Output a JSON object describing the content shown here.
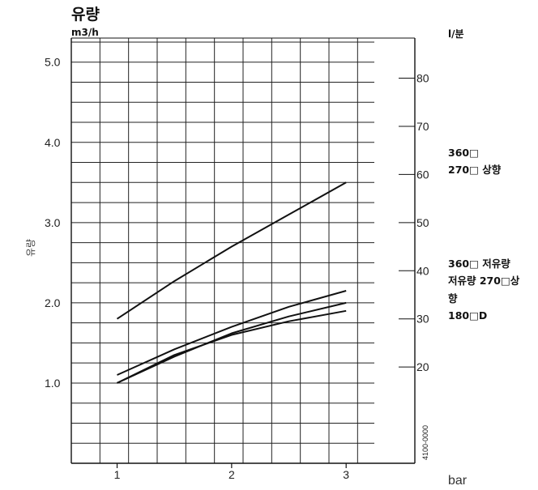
{
  "chart_data": {
    "type": "line",
    "title": "유량",
    "ylabel_left_unit": "m3/h",
    "ylabel_right_unit": "l/분",
    "ylabel_side": "유량",
    "xlabel": "bar",
    "xlim": [
      0.6,
      3.6
    ],
    "ylim": [
      0,
      5.3
    ],
    "x_ticks": [
      "1",
      "2",
      "3"
    ],
    "y_ticks": [
      "1.0",
      "2.0",
      "3.0",
      "4.0",
      "5.0"
    ],
    "right_ticks": [
      "20",
      "30",
      "40",
      "50",
      "60",
      "70",
      "80"
    ],
    "grid": true,
    "code_label": "4100-0000",
    "series": [
      {
        "x": [
          1,
          1.5,
          2,
          2.5,
          3
        ],
        "y": [
          1.8,
          2.27,
          2.7,
          3.1,
          3.5
        ]
      },
      {
        "x": [
          1,
          1.5,
          2,
          2.5,
          3
        ],
        "y": [
          1.1,
          1.42,
          1.7,
          1.95,
          2.15
        ]
      },
      {
        "x": [
          1,
          1.5,
          2,
          2.5,
          3
        ],
        "y": [
          1.0,
          1.33,
          1.62,
          1.83,
          2.0
        ]
      },
      {
        "x": [
          1,
          1.5,
          2,
          2.5,
          3
        ],
        "y": [
          1.0,
          1.35,
          1.6,
          1.77,
          1.9
        ]
      }
    ],
    "annotations": [
      {
        "lines": [
          "360□",
          "270□ 상향"
        ]
      },
      {
        "lines": [
          "360□ 저유량",
          "저유량 270□상",
          "향",
          "180□D"
        ]
      }
    ]
  }
}
